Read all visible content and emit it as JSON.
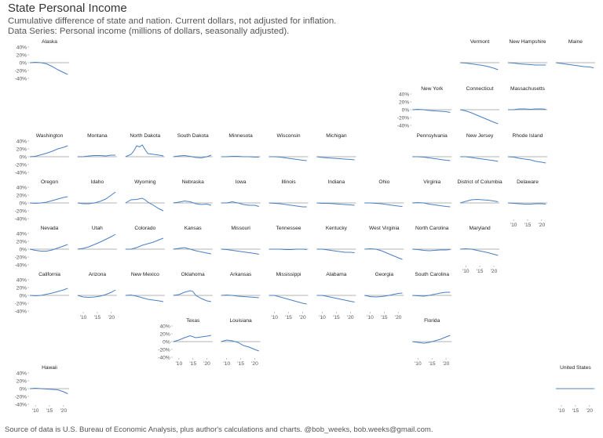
{
  "title": "State Personal Income",
  "subtitle": "Cumulative difference of state and nation. Current dollars, not adjusted for inflation.",
  "data_series": "Data Series: Personal income (millions of dollars, seasonally adjusted).",
  "source": "Source of data is U.S. Bureau of Economic Analysis, plus author's calculations and charts. @bob_weeks, bob.weeks@gmail.com.",
  "colors": {
    "line": "#4a7fc1",
    "zero_line": "#b3b3b3",
    "axis_text": "#555555"
  },
  "chart_data": {
    "type": "line",
    "layout": "small-multiples tile grid map of U.S. states",
    "x_range": [
      2008,
      2022
    ],
    "x_ticks": [
      "'10",
      "'15",
      "'20"
    ],
    "y_range": [
      -40,
      40
    ],
    "y_ticks": [
      "40%",
      "20%",
      "0%",
      "-20%",
      "-40%"
    ],
    "grid": false,
    "panels": [
      {
        "name": "Alaska",
        "x": [
          2008,
          2010,
          2012,
          2014,
          2016,
          2018,
          2020,
          2021.5
        ],
        "y": [
          0,
          1,
          0,
          -3,
          -10,
          -18,
          -25,
          -30
        ]
      },
      {
        "name": "Vermont",
        "x": [
          2008,
          2010,
          2012,
          2014,
          2016,
          2018,
          2020,
          2021.5
        ],
        "y": [
          0,
          -1,
          -3,
          -5,
          -7,
          -10,
          -14,
          -18
        ]
      },
      {
        "name": "New Hampshire",
        "x": [
          2008,
          2010,
          2012,
          2014,
          2016,
          2018,
          2020,
          2021.5
        ],
        "y": [
          0,
          -1,
          -3,
          -4,
          -5,
          -6,
          -6,
          -6
        ]
      },
      {
        "name": "Maine",
        "x": [
          2008,
          2010,
          2012,
          2014,
          2016,
          2018,
          2020,
          2021.5
        ],
        "y": [
          0,
          -2,
          -4,
          -6,
          -8,
          -10,
          -11,
          -13
        ]
      },
      {
        "name": "New York",
        "x": [
          2008,
          2010,
          2012,
          2014,
          2016,
          2018,
          2020,
          2021.5
        ],
        "y": [
          0,
          1,
          0,
          -2,
          -3,
          -4,
          -5,
          -7
        ]
      },
      {
        "name": "Connecticut",
        "x": [
          2008,
          2010,
          2012,
          2014,
          2016,
          2018,
          2020,
          2021.5
        ],
        "y": [
          0,
          -3,
          -8,
          -14,
          -20,
          -26,
          -32,
          -36
        ]
      },
      {
        "name": "Massachusetts",
        "x": [
          2008,
          2010,
          2012,
          2014,
          2016,
          2018,
          2020,
          2021.5
        ],
        "y": [
          0,
          0,
          2,
          2,
          1,
          2,
          2,
          1
        ]
      },
      {
        "name": "Washington",
        "x": [
          2008,
          2010,
          2012,
          2014,
          2016,
          2018,
          2020,
          2021.5
        ],
        "y": [
          0,
          1,
          5,
          9,
          14,
          20,
          24,
          28
        ]
      },
      {
        "name": "Montana",
        "x": [
          2008,
          2010,
          2012,
          2014,
          2016,
          2018,
          2020,
          2021.5
        ],
        "y": [
          0,
          0,
          2,
          3,
          3,
          2,
          4,
          4
        ]
      },
      {
        "name": "North Dakota",
        "x": [
          2008,
          2010,
          2011,
          2012,
          2013,
          2014,
          2015,
          2016,
          2018,
          2020,
          2021.5
        ],
        "y": [
          0,
          6,
          15,
          28,
          25,
          30,
          18,
          8,
          6,
          4,
          2
        ]
      },
      {
        "name": "South Dakota",
        "x": [
          2008,
          2010,
          2012,
          2014,
          2016,
          2018,
          2020,
          2021.5
        ],
        "y": [
          0,
          2,
          3,
          1,
          -2,
          -3,
          0,
          4
        ]
      },
      {
        "name": "Minnesota",
        "x": [
          2008,
          2010,
          2012,
          2014,
          2016,
          2018,
          2020,
          2021.5
        ],
        "y": [
          0,
          0,
          1,
          1,
          0,
          0,
          -1,
          -1
        ]
      },
      {
        "name": "Wisconsin",
        "x": [
          2008,
          2010,
          2012,
          2014,
          2016,
          2018,
          2020,
          2021.5
        ],
        "y": [
          0,
          0,
          -1,
          -3,
          -5,
          -7,
          -9,
          -10
        ]
      },
      {
        "name": "Michigan",
        "x": [
          2008,
          2010,
          2012,
          2014,
          2016,
          2018,
          2020,
          2021.5
        ],
        "y": [
          0,
          -2,
          -3,
          -4,
          -5,
          -6,
          -7,
          -8
        ]
      },
      {
        "name": "Pennsylvania",
        "x": [
          2008,
          2010,
          2012,
          2014,
          2016,
          2018,
          2020,
          2021.5
        ],
        "y": [
          0,
          0,
          -1,
          -3,
          -5,
          -7,
          -9,
          -10
        ]
      },
      {
        "name": "New Jersey",
        "x": [
          2008,
          2010,
          2012,
          2014,
          2016,
          2018,
          2020,
          2021.5
        ],
        "y": [
          0,
          0,
          -2,
          -4,
          -6,
          -8,
          -10,
          -12
        ]
      },
      {
        "name": "Rhode Island",
        "x": [
          2008,
          2010,
          2012,
          2014,
          2016,
          2018,
          2020,
          2021.5
        ],
        "y": [
          0,
          -1,
          -4,
          -6,
          -8,
          -12,
          -14,
          -16
        ]
      },
      {
        "name": "Oregon",
        "x": [
          2008,
          2010,
          2012,
          2014,
          2016,
          2018,
          2020,
          2021.5
        ],
        "y": [
          0,
          -1,
          0,
          2,
          6,
          10,
          14,
          16
        ]
      },
      {
        "name": "Idaho",
        "x": [
          2008,
          2010,
          2012,
          2014,
          2016,
          2018,
          2020,
          2021.5
        ],
        "y": [
          0,
          -2,
          -2,
          0,
          4,
          10,
          20,
          28
        ]
      },
      {
        "name": "Wyoming",
        "x": [
          2008,
          2010,
          2012,
          2014,
          2015,
          2016,
          2018,
          2020,
          2021.5
        ],
        "y": [
          0,
          8,
          9,
          12,
          8,
          2,
          -6,
          -15,
          -20
        ]
      },
      {
        "name": "Nebraska",
        "x": [
          2008,
          2010,
          2012,
          2014,
          2016,
          2018,
          2020,
          2021.5
        ],
        "y": [
          0,
          2,
          5,
          3,
          -2,
          -4,
          -3,
          -6
        ]
      },
      {
        "name": "Iowa",
        "x": [
          2008,
          2010,
          2012,
          2014,
          2016,
          2018,
          2020,
          2021.5
        ],
        "y": [
          0,
          0,
          3,
          0,
          -4,
          -6,
          -6,
          -9
        ]
      },
      {
        "name": "Illinois",
        "x": [
          2008,
          2010,
          2012,
          2014,
          2016,
          2018,
          2020,
          2021.5
        ],
        "y": [
          0,
          -1,
          -2,
          -4,
          -6,
          -8,
          -10,
          -10
        ]
      },
      {
        "name": "Indiana",
        "x": [
          2008,
          2010,
          2012,
          2014,
          2016,
          2018,
          2020,
          2021.5
        ],
        "y": [
          0,
          -1,
          -1,
          -2,
          -3,
          -4,
          -5,
          -6
        ]
      },
      {
        "name": "Ohio",
        "x": [
          2008,
          2010,
          2012,
          2014,
          2016,
          2018,
          2020,
          2021.5
        ],
        "y": [
          0,
          0,
          -1,
          -2,
          -4,
          -6,
          -8,
          -9
        ]
      },
      {
        "name": "Virginia",
        "x": [
          2008,
          2010,
          2012,
          2014,
          2016,
          2018,
          2020,
          2021.5
        ],
        "y": [
          0,
          1,
          0,
          -3,
          -5,
          -7,
          -9,
          -10
        ]
      },
      {
        "name": "District of Columbia",
        "x": [
          2008,
          2010,
          2012,
          2014,
          2016,
          2018,
          2020,
          2021.5
        ],
        "y": [
          0,
          4,
          8,
          9,
          8,
          7,
          5,
          3
        ]
      },
      {
        "name": "Delaware",
        "x": [
          2008,
          2010,
          2012,
          2014,
          2016,
          2018,
          2020,
          2021.5
        ],
        "y": [
          0,
          -1,
          -2,
          -3,
          -3,
          -2,
          -2,
          -3
        ]
      },
      {
        "name": "Nevada",
        "x": [
          2008,
          2010,
          2012,
          2014,
          2016,
          2018,
          2020,
          2021.5
        ],
        "y": [
          0,
          -3,
          -5,
          -5,
          -2,
          3,
          8,
          12
        ]
      },
      {
        "name": "Utah",
        "x": [
          2008,
          2010,
          2012,
          2014,
          2016,
          2018,
          2020,
          2021.5
        ],
        "y": [
          0,
          2,
          6,
          12,
          18,
          25,
          32,
          38
        ]
      },
      {
        "name": "Colorado",
        "x": [
          2008,
          2010,
          2012,
          2014,
          2016,
          2018,
          2020,
          2021.5
        ],
        "y": [
          0,
          0,
          4,
          10,
          14,
          18,
          24,
          28
        ]
      },
      {
        "name": "Kansas",
        "x": [
          2008,
          2010,
          2012,
          2014,
          2016,
          2018,
          2020,
          2021.5
        ],
        "y": [
          0,
          2,
          4,
          0,
          -4,
          -7,
          -10,
          -12
        ]
      },
      {
        "name": "Missouri",
        "x": [
          2008,
          2010,
          2012,
          2014,
          2016,
          2018,
          2020,
          2021.5
        ],
        "y": [
          0,
          -1,
          -3,
          -5,
          -7,
          -9,
          -11,
          -13
        ]
      },
      {
        "name": "Tennessee",
        "x": [
          2008,
          2010,
          2012,
          2014,
          2016,
          2018,
          2020,
          2021.5
        ],
        "y": [
          0,
          0,
          0,
          -1,
          -1,
          0,
          0,
          -1
        ]
      },
      {
        "name": "Kentucky",
        "x": [
          2008,
          2010,
          2012,
          2014,
          2016,
          2018,
          2020,
          2021.5
        ],
        "y": [
          0,
          0,
          -2,
          -4,
          -6,
          -8,
          -8,
          -9
        ]
      },
      {
        "name": "West Virginia",
        "x": [
          2008,
          2010,
          2012,
          2014,
          2016,
          2018,
          2020,
          2021.5
        ],
        "y": [
          0,
          1,
          0,
          -4,
          -10,
          -16,
          -22,
          -26
        ]
      },
      {
        "name": "North Carolina",
        "x": [
          2008,
          2010,
          2012,
          2014,
          2016,
          2018,
          2020,
          2021.5
        ],
        "y": [
          0,
          -1,
          -3,
          -4,
          -3,
          -2,
          -2,
          -1
        ]
      },
      {
        "name": "Maryland",
        "x": [
          2008,
          2010,
          2012,
          2014,
          2016,
          2018,
          2020,
          2021.5
        ],
        "y": [
          0,
          1,
          0,
          -3,
          -6,
          -9,
          -13,
          -16
        ]
      },
      {
        "name": "California",
        "x": [
          2008,
          2010,
          2012,
          2014,
          2016,
          2018,
          2020,
          2021.5
        ],
        "y": [
          0,
          -1,
          0,
          3,
          6,
          10,
          14,
          18
        ]
      },
      {
        "name": "Arizona",
        "x": [
          2008,
          2010,
          2012,
          2014,
          2016,
          2018,
          2020,
          2021.5
        ],
        "y": [
          0,
          -4,
          -5,
          -4,
          -2,
          2,
          8,
          14
        ]
      },
      {
        "name": "New Mexico",
        "x": [
          2008,
          2010,
          2012,
          2014,
          2016,
          2018,
          2020,
          2021.5
        ],
        "y": [
          0,
          1,
          -2,
          -6,
          -10,
          -12,
          -14,
          -16
        ]
      },
      {
        "name": "Oklahoma",
        "x": [
          2008,
          2010,
          2012,
          2014,
          2015,
          2016,
          2018,
          2020,
          2021.5
        ],
        "y": [
          0,
          2,
          8,
          12,
          10,
          0,
          -8,
          -14,
          -16
        ]
      },
      {
        "name": "Arkansas",
        "x": [
          2008,
          2010,
          2012,
          2014,
          2016,
          2018,
          2020,
          2021.5
        ],
        "y": [
          0,
          1,
          0,
          -2,
          -3,
          -4,
          -5,
          -6
        ]
      },
      {
        "name": "Mississippi",
        "x": [
          2008,
          2010,
          2012,
          2014,
          2016,
          2018,
          2020,
          2021.5
        ],
        "y": [
          0,
          0,
          -4,
          -8,
          -12,
          -16,
          -20,
          -22
        ]
      },
      {
        "name": "Alabama",
        "x": [
          2008,
          2010,
          2012,
          2014,
          2016,
          2018,
          2020,
          2021.5
        ],
        "y": [
          0,
          0,
          -3,
          -6,
          -9,
          -12,
          -15,
          -17
        ]
      },
      {
        "name": "Georgia",
        "x": [
          2008,
          2010,
          2012,
          2014,
          2016,
          2018,
          2020,
          2021.5
        ],
        "y": [
          0,
          -3,
          -4,
          -3,
          -1,
          2,
          5,
          6
        ]
      },
      {
        "name": "South Carolina",
        "x": [
          2008,
          2010,
          2012,
          2014,
          2016,
          2018,
          2020,
          2021.5
        ],
        "y": [
          0,
          -1,
          -2,
          0,
          3,
          6,
          8,
          8
        ]
      },
      {
        "name": "Texas",
        "x": [
          2008,
          2010,
          2012,
          2014,
          2016,
          2018,
          2020,
          2021.5
        ],
        "y": [
          0,
          4,
          10,
          15,
          10,
          12,
          14,
          16
        ]
      },
      {
        "name": "Louisiana",
        "x": [
          2008,
          2010,
          2012,
          2014,
          2016,
          2018,
          2020,
          2021.5
        ],
        "y": [
          0,
          4,
          2,
          -2,
          -10,
          -14,
          -20,
          -24
        ]
      },
      {
        "name": "Florida",
        "x": [
          2008,
          2010,
          2012,
          2014,
          2016,
          2018,
          2020,
          2021.5
        ],
        "y": [
          0,
          -2,
          -4,
          -2,
          2,
          6,
          12,
          16
        ]
      },
      {
        "name": "Hawaii",
        "x": [
          2008,
          2010,
          2012,
          2014,
          2016,
          2018,
          2020,
          2021.5
        ],
        "y": [
          0,
          1,
          0,
          -1,
          -2,
          -3,
          -8,
          -13
        ]
      },
      {
        "name": "United States",
        "x": [
          2008,
          2021.5
        ],
        "y": [
          0,
          0
        ]
      }
    ]
  }
}
